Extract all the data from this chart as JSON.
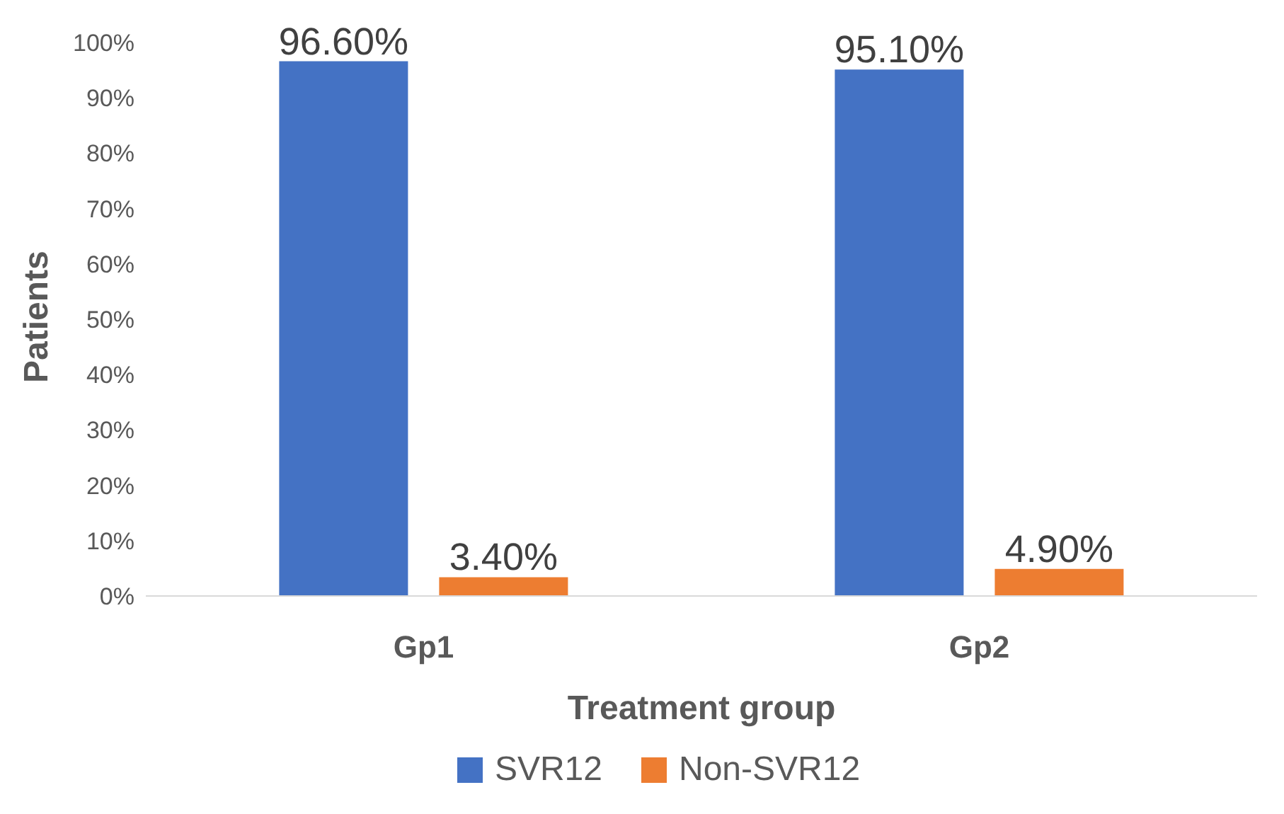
{
  "chart_data": {
    "type": "bar",
    "xlabel": "Treatment group",
    "ylabel": "Patients",
    "categories": [
      "Gp1",
      "Gp2"
    ],
    "series": [
      {
        "name": "SVR12",
        "color": "#4472c4",
        "values": [
          96.6,
          95.1
        ],
        "value_labels": [
          "96.60%",
          "95.10%"
        ]
      },
      {
        "name": "Non-SVR12",
        "color": "#ed7d31",
        "values": [
          3.4,
          4.9
        ],
        "value_labels": [
          "3.40%",
          "4.90%"
        ]
      }
    ],
    "ylim": [
      0,
      100
    ],
    "yticks": [
      {
        "value": 0,
        "label": "0%"
      },
      {
        "value": 10,
        "label": "10%"
      },
      {
        "value": 20,
        "label": "20%"
      },
      {
        "value": 30,
        "label": "30%"
      },
      {
        "value": 40,
        "label": "40%"
      },
      {
        "value": 50,
        "label": "50%"
      },
      {
        "value": 60,
        "label": "60%"
      },
      {
        "value": 70,
        "label": "70%"
      },
      {
        "value": 80,
        "label": "80%"
      },
      {
        "value": 90,
        "label": "90%"
      },
      {
        "value": 100,
        "label": "100%"
      }
    ],
    "grid": false,
    "legend": "bottom"
  }
}
